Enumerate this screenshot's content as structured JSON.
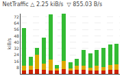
{
  "chart_data": {
    "type": "bar",
    "title": "NetTraffic △ 2.25 kiB/s  ▽ 855.03 B/s",
    "ylabel": "kiB/s",
    "categories": [
      null,
      null,
      null,
      null,
      null,
      null,
      null,
      null,
      null,
      null,
      null,
      null,
      null,
      null,
      null
    ],
    "series": [
      {
        "color": "#cc2200",
        "values": [
          4,
          5,
          6,
          5,
          4,
          4,
          6,
          4,
          5,
          5,
          4,
          4,
          4,
          5,
          5
        ]
      },
      {
        "color": "#ddaa00",
        "values": [
          6,
          5,
          18,
          8,
          14,
          3,
          10,
          3,
          5,
          5,
          4,
          6,
          5,
          6,
          7
        ]
      },
      {
        "color": "#33bb33",
        "values": [
          48,
          12,
          9,
          33,
          57,
          4,
          60,
          8,
          9,
          20,
          18,
          20,
          24,
          26,
          26
        ]
      }
    ],
    "stacked": true,
    "ylim": [
      0,
      76
    ],
    "yticks": [
      8,
      16,
      24,
      32,
      40,
      48,
      56,
      64,
      72
    ],
    "grid": true,
    "tick_labels": "y"
  }
}
